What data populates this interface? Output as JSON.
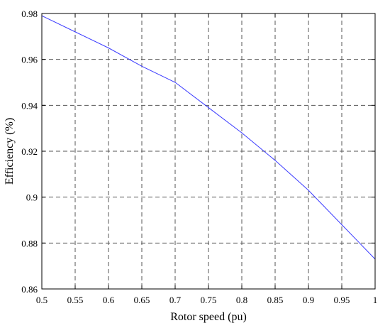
{
  "chart_data": {
    "type": "line",
    "title": "",
    "xlabel": "Rotor speed (pu)",
    "ylabel": "Efficiency (%)",
    "xlim": [
      0.5,
      1
    ],
    "ylim": [
      0.86,
      0.98
    ],
    "xticks": [
      0.5,
      0.55,
      0.6,
      0.65,
      0.7,
      0.75,
      0.8,
      0.85,
      0.9,
      0.95,
      1
    ],
    "yticks": [
      0.86,
      0.88,
      0.9,
      0.92,
      0.94,
      0.96,
      0.98
    ],
    "xtick_labels": [
      "0.5",
      "0.55",
      "0.6",
      "0.65",
      "0.7",
      "0.75",
      "0.8",
      "0.85",
      "0.9",
      "0.95",
      "1"
    ],
    "ytick_labels": [
      "0.86",
      "0.88",
      "0.9",
      "0.92",
      "0.94",
      "0.96",
      "0.98"
    ],
    "grid": true,
    "series": [
      {
        "color": "#3b3bff",
        "x": [
          0.5,
          0.55,
          0.6,
          0.65,
          0.7,
          0.75,
          0.8,
          0.85,
          0.9,
          0.95,
          1
        ],
        "y": [
          0.979,
          0.972,
          0.965,
          0.957,
          0.95,
          0.939,
          0.928,
          0.916,
          0.903,
          0.888,
          0.873
        ]
      }
    ]
  }
}
